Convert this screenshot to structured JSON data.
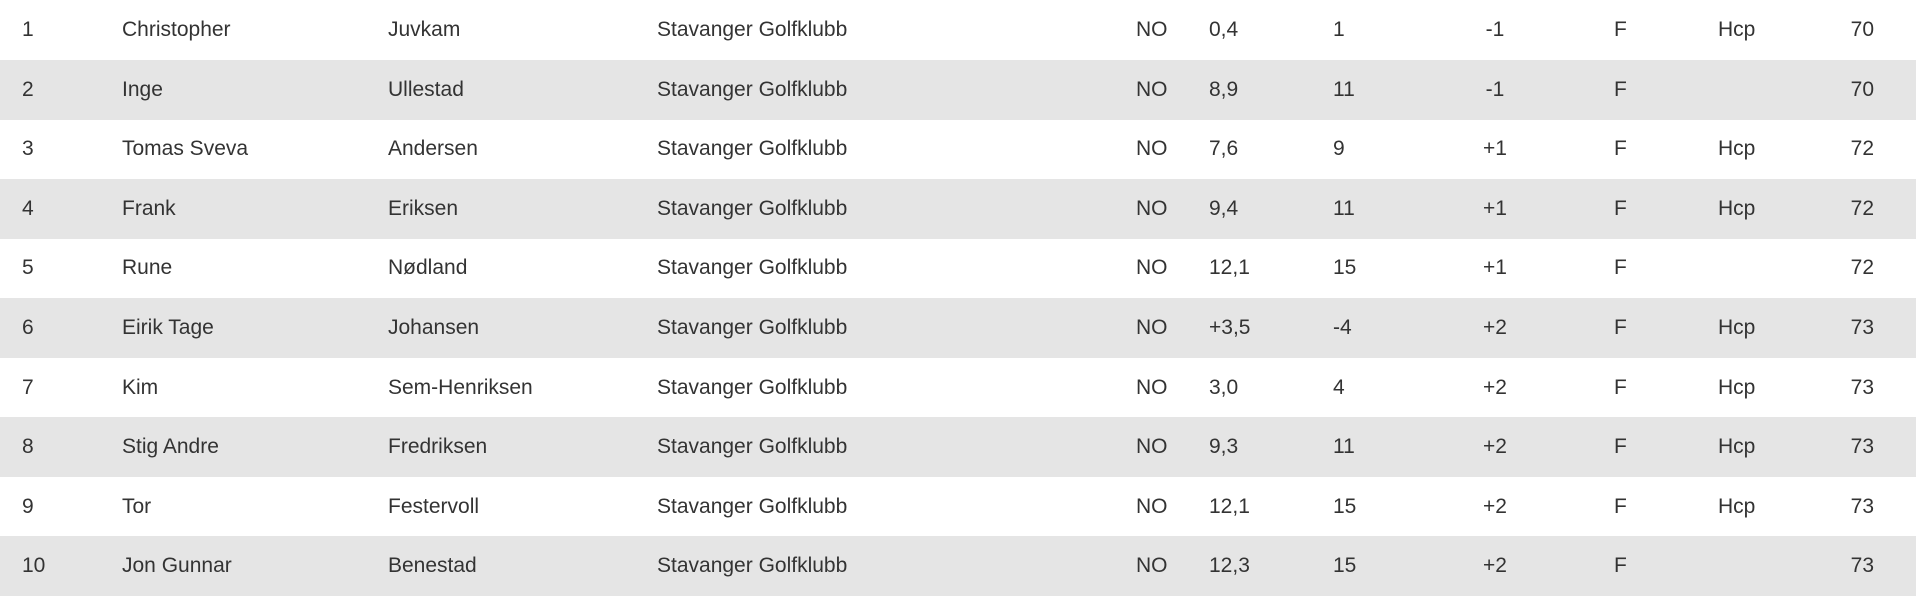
{
  "colors": {
    "stripe": "#e5e5e5",
    "text": "#333333"
  },
  "rows": [
    [
      "1",
      "Christopher",
      "Juvkam",
      "Stavanger Golfklubb",
      "NO",
      "0,4",
      "1",
      "-1",
      "F",
      "Hcp",
      "70"
    ],
    [
      "2",
      "Inge",
      "Ullestad",
      "Stavanger Golfklubb",
      "NO",
      "8,9",
      "11",
      "-1",
      "F",
      "",
      "70"
    ],
    [
      "3",
      "Tomas Sveva",
      "Andersen",
      "Stavanger Golfklubb",
      "NO",
      "7,6",
      "9",
      "+1",
      "F",
      "Hcp",
      "72"
    ],
    [
      "4",
      "Frank",
      "Eriksen",
      "Stavanger Golfklubb",
      "NO",
      "9,4",
      "11",
      "+1",
      "F",
      "Hcp",
      "72"
    ],
    [
      "5",
      "Rune",
      "Nødland",
      "Stavanger Golfklubb",
      "NO",
      "12,1",
      "15",
      "+1",
      "F",
      "",
      "72"
    ],
    [
      "6",
      "Eirik Tage",
      "Johansen",
      "Stavanger Golfklubb",
      "NO",
      "+3,5",
      "-4",
      "+2",
      "F",
      "Hcp",
      "73"
    ],
    [
      "7",
      "Kim",
      "Sem-Henriksen",
      "Stavanger Golfklubb",
      "NO",
      "3,0",
      "4",
      "+2",
      "F",
      "Hcp",
      "73"
    ],
    [
      "8",
      "Stig Andre",
      "Fredriksen",
      "Stavanger Golfklubb",
      "NO",
      "9,3",
      "11",
      "+2",
      "F",
      "Hcp",
      "73"
    ],
    [
      "9",
      "Tor",
      "Festervoll",
      "Stavanger Golfklubb",
      "NO",
      "12,1",
      "15",
      "+2",
      "F",
      "Hcp",
      "73"
    ],
    [
      "10",
      "Jon Gunnar",
      "Benestad",
      "Stavanger Golfklubb",
      "NO",
      "12,3",
      "15",
      "+2",
      "F",
      "",
      "73"
    ]
  ]
}
